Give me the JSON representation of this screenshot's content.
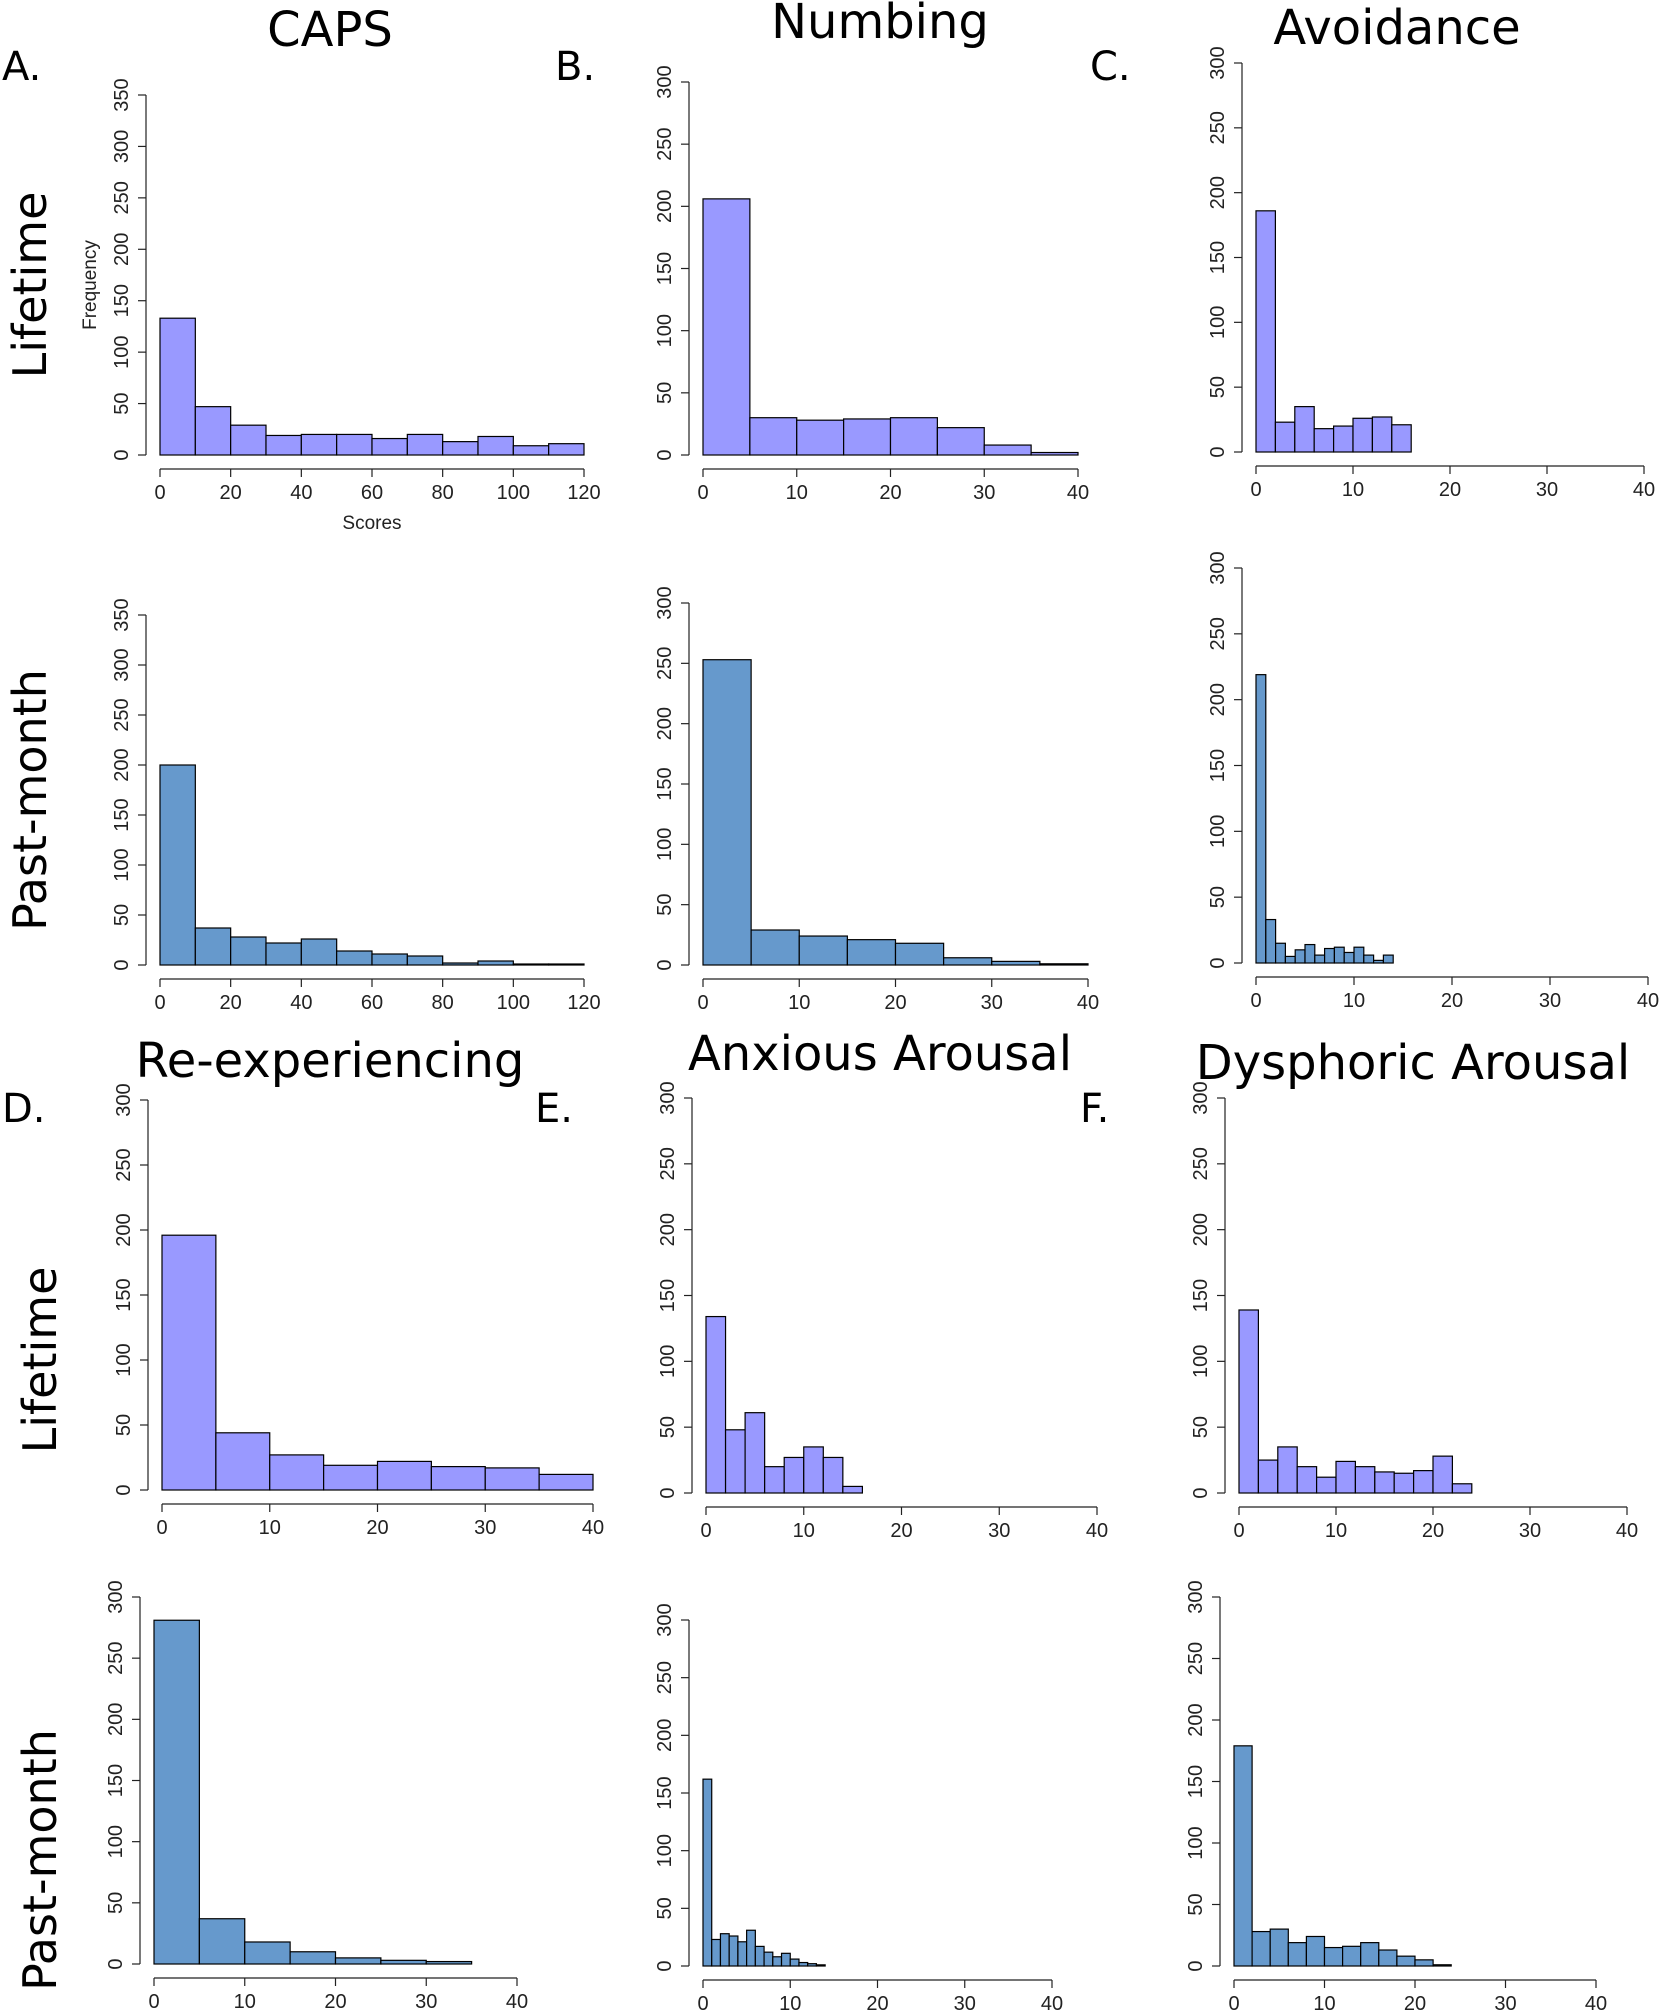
{
  "figure": {
    "colors": {
      "lifetime": "#9999ff",
      "past_month": "#6699cc",
      "edge": "#000000"
    },
    "row_labels": {
      "lifetime": "Lifetime",
      "past_month": "Past-month"
    },
    "panels": [
      {
        "letter": "A.",
        "title": "CAPS"
      },
      {
        "letter": "B.",
        "title": "Numbing"
      },
      {
        "letter": "C.",
        "title": "Avoidance"
      },
      {
        "letter": "D.",
        "title": "Re-experiencing"
      },
      {
        "letter": "E.",
        "title": "Anxious Arousal"
      },
      {
        "letter": "F.",
        "title": "Dysphoric Arousal"
      }
    ]
  },
  "chart_data": [
    {
      "type": "bar",
      "panel": "A.",
      "title": "CAPS",
      "row": "Lifetime",
      "color": "#9999ff",
      "xlabel": "Scores",
      "ylabel": "Frequency",
      "xlim": [
        0,
        120
      ],
      "ylim": [
        0,
        350
      ],
      "xticks": [
        0,
        20,
        40,
        60,
        80,
        100,
        120
      ],
      "yticks": [
        0,
        50,
        100,
        150,
        200,
        250,
        300,
        350
      ],
      "bin_edges": [
        0,
        10,
        20,
        30,
        40,
        50,
        60,
        70,
        80,
        90,
        100,
        110,
        120
      ],
      "values": [
        133,
        47,
        29,
        19,
        20,
        20,
        16,
        20,
        13,
        18,
        9,
        11
      ]
    },
    {
      "type": "bar",
      "panel": "B.",
      "title": "Numbing",
      "row": "Lifetime",
      "color": "#9999ff",
      "xlabel": "",
      "ylabel": "",
      "xlim": [
        0,
        40
      ],
      "ylim": [
        0,
        300
      ],
      "xticks": [
        0,
        10,
        20,
        30,
        40
      ],
      "yticks": [
        0,
        50,
        100,
        150,
        200,
        250,
        300
      ],
      "bin_edges": [
        0,
        5,
        10,
        15,
        20,
        25,
        30,
        35,
        40
      ],
      "values": [
        206,
        30,
        28,
        29,
        30,
        22,
        8,
        2
      ]
    },
    {
      "type": "bar",
      "panel": "C.",
      "title": "Avoidance",
      "row": "Lifetime",
      "color": "#9999ff",
      "xlabel": "",
      "ylabel": "",
      "xlim": [
        0,
        40
      ],
      "ylim": [
        0,
        300
      ],
      "xticks": [
        0,
        10,
        20,
        30,
        40
      ],
      "yticks": [
        0,
        50,
        100,
        150,
        200,
        250,
        300
      ],
      "bin_edges": [
        0,
        2,
        4,
        6,
        8,
        10,
        12,
        14,
        16
      ],
      "values": [
        186,
        23,
        35,
        18,
        20,
        26,
        27,
        21
      ]
    },
    {
      "type": "bar",
      "panel": "A.",
      "title": "CAPS",
      "row": "Past-month",
      "color": "#6699cc",
      "xlabel": "",
      "ylabel": "",
      "xlim": [
        0,
        120
      ],
      "ylim": [
        0,
        350
      ],
      "xticks": [
        0,
        20,
        40,
        60,
        80,
        100,
        120
      ],
      "yticks": [
        0,
        50,
        100,
        150,
        200,
        250,
        300,
        350
      ],
      "bin_edges": [
        0,
        10,
        20,
        30,
        40,
        50,
        60,
        70,
        80,
        90,
        100,
        110,
        120
      ],
      "values": [
        200,
        37,
        28,
        22,
        26,
        14,
        11,
        9,
        2,
        4,
        1,
        1
      ]
    },
    {
      "type": "bar",
      "panel": "B.",
      "title": "Numbing",
      "row": "Past-month",
      "color": "#6699cc",
      "xlabel": "",
      "ylabel": "",
      "xlim": [
        0,
        40
      ],
      "ylim": [
        0,
        300
      ],
      "xticks": [
        0,
        10,
        20,
        30,
        40
      ],
      "yticks": [
        0,
        50,
        100,
        150,
        200,
        250,
        300
      ],
      "bin_edges": [
        0,
        5,
        10,
        15,
        20,
        25,
        30,
        35,
        40
      ],
      "values": [
        253,
        29,
        24,
        21,
        18,
        6,
        3,
        1
      ]
    },
    {
      "type": "bar",
      "panel": "C.",
      "title": "Avoidance",
      "row": "Past-month",
      "color": "#6699cc",
      "xlabel": "",
      "ylabel": "",
      "xlim": [
        0,
        40
      ],
      "ylim": [
        0,
        300
      ],
      "xticks": [
        0,
        10,
        20,
        30,
        40
      ],
      "yticks": [
        0,
        50,
        100,
        150,
        200,
        250,
        300
      ],
      "bin_edges": [
        0,
        1,
        2,
        3,
        4,
        5,
        6,
        7,
        8,
        9,
        10,
        11,
        12,
        13,
        14
      ],
      "values": [
        219,
        33,
        15,
        5,
        10,
        14,
        6,
        11,
        12,
        8,
        12,
        6,
        2,
        6
      ]
    },
    {
      "type": "bar",
      "panel": "D.",
      "title": "Re-experiencing",
      "row": "Lifetime",
      "color": "#9999ff",
      "xlabel": "",
      "ylabel": "",
      "xlim": [
        0,
        40
      ],
      "ylim": [
        0,
        300
      ],
      "xticks": [
        0,
        10,
        20,
        30,
        40
      ],
      "yticks": [
        0,
        50,
        100,
        150,
        200,
        250,
        300
      ],
      "bin_edges": [
        0,
        5,
        10,
        15,
        20,
        25,
        30,
        35,
        40
      ],
      "values": [
        196,
        44,
        27,
        19,
        22,
        18,
        17,
        12
      ]
    },
    {
      "type": "bar",
      "panel": "E.",
      "title": "Anxious Arousal",
      "row": "Lifetime",
      "color": "#9999ff",
      "xlabel": "",
      "ylabel": "",
      "xlim": [
        0,
        40
      ],
      "ylim": [
        0,
        300
      ],
      "xticks": [
        0,
        10,
        20,
        30,
        40
      ],
      "yticks": [
        0,
        50,
        100,
        150,
        200,
        250,
        300
      ],
      "bin_edges": [
        0,
        2,
        4,
        6,
        8,
        10,
        12,
        14,
        16
      ],
      "values": [
        134,
        48,
        61,
        20,
        27,
        35,
        27,
        5
      ]
    },
    {
      "type": "bar",
      "panel": "F.",
      "title": "Dysphoric Arousal",
      "row": "Lifetime",
      "color": "#9999ff",
      "xlabel": "",
      "ylabel": "",
      "xlim": [
        0,
        40
      ],
      "ylim": [
        0,
        300
      ],
      "xticks": [
        0,
        10,
        20,
        30,
        40
      ],
      "yticks": [
        0,
        50,
        100,
        150,
        200,
        250,
        300
      ],
      "bin_edges": [
        0,
        2,
        4,
        6,
        8,
        10,
        12,
        14,
        16,
        18,
        20,
        22,
        24
      ],
      "values": [
        139,
        25,
        35,
        20,
        12,
        24,
        20,
        16,
        15,
        17,
        28,
        7
      ]
    },
    {
      "type": "bar",
      "panel": "D.",
      "title": "Re-experiencing",
      "row": "Past-month",
      "color": "#6699cc",
      "xlabel": "",
      "ylabel": "",
      "xlim": [
        0,
        40
      ],
      "ylim": [
        0,
        300
      ],
      "xticks": [
        0,
        10,
        20,
        30,
        40
      ],
      "yticks": [
        0,
        50,
        100,
        150,
        200,
        250,
        300
      ],
      "bin_edges": [
        0,
        5,
        10,
        15,
        20,
        25,
        30,
        35
      ],
      "values": [
        281,
        37,
        18,
        10,
        5,
        3,
        2
      ]
    },
    {
      "type": "bar",
      "panel": "E.",
      "title": "Anxious Arousal",
      "row": "Past-month",
      "color": "#6699cc",
      "xlabel": "",
      "ylabel": "",
      "xlim": [
        0,
        40
      ],
      "ylim": [
        0,
        300
      ],
      "xticks": [
        0,
        10,
        20,
        30,
        40
      ],
      "yticks": [
        0,
        50,
        100,
        150,
        200,
        250,
        300
      ],
      "bin_edges": [
        0,
        1,
        2,
        3,
        4,
        5,
        6,
        7,
        8,
        9,
        10,
        11,
        12,
        13,
        14
      ],
      "values": [
        162,
        23,
        28,
        26,
        21,
        31,
        17,
        12,
        8,
        11,
        6,
        3,
        2,
        1
      ]
    },
    {
      "type": "bar",
      "panel": "F.",
      "title": "Dysphoric Arousal",
      "row": "Past-month",
      "color": "#6699cc",
      "xlabel": "",
      "ylabel": "",
      "xlim": [
        0,
        40
      ],
      "ylim": [
        0,
        300
      ],
      "xticks": [
        0,
        10,
        20,
        30,
        40
      ],
      "yticks": [
        0,
        50,
        100,
        150,
        200,
        250,
        300
      ],
      "bin_edges": [
        0,
        2,
        4,
        6,
        8,
        10,
        12,
        14,
        16,
        18,
        20,
        22,
        24
      ],
      "values": [
        179,
        28,
        30,
        19,
        24,
        15,
        16,
        19,
        13,
        8,
        5,
        1
      ]
    }
  ]
}
